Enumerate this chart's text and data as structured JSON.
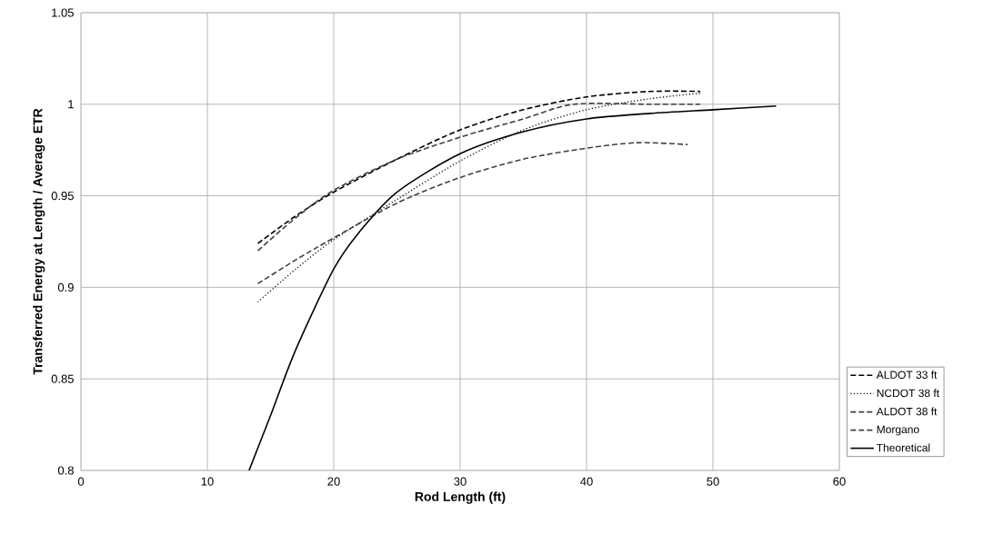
{
  "chart_data": {
    "type": "line",
    "xlabel": "Rod Length (ft)",
    "ylabel": "Transferred Energy at Length / Average ETR",
    "xlim": [
      0,
      60
    ],
    "xticks": [
      0,
      10,
      20,
      30,
      40,
      50,
      60
    ],
    "ylim": [
      0.8,
      1.05
    ],
    "yticks": [
      {
        "value": 0.8,
        "label": "0.8"
      },
      0.85,
      {
        "value": 0.9,
        "label": "0.9"
      },
      0.95,
      {
        "value": 1.0,
        "label": "1"
      },
      1.05
    ],
    "grid": true,
    "legend": "right",
    "marker": "none",
    "series": [
      {
        "name": "ALDOT 33 ft",
        "color": "#000000",
        "line_style": "dashed",
        "x": [
          14,
          17,
          20,
          25,
          30,
          35,
          40,
          45,
          49
        ],
        "values": [
          0.924,
          0.939,
          0.952,
          0.97,
          0.986,
          0.997,
          1.004,
          1.007,
          1.007
        ]
      },
      {
        "name": "NCDOT 38 ft",
        "color": "#000000",
        "line_style": "dotted",
        "x": [
          14,
          17,
          20,
          25,
          30,
          35,
          40,
          45,
          49
        ],
        "values": [
          0.892,
          0.91,
          0.926,
          0.948,
          0.969,
          0.986,
          0.997,
          1.003,
          1.006
        ]
      },
      {
        "name": "ALDOT 38 ft",
        "color": "#404040",
        "line_style": "dashed",
        "x": [
          14,
          17,
          20,
          25,
          30,
          35,
          40,
          44,
          48
        ],
        "values": [
          0.902,
          0.915,
          0.927,
          0.946,
          0.96,
          0.97,
          0.976,
          0.979,
          0.978
        ]
      },
      {
        "name": "Morgano",
        "color": "#404040",
        "line_style": "dashed",
        "x": [
          14,
          17,
          20,
          25,
          30,
          35,
          39,
          45,
          49
        ],
        "values": [
          0.92,
          0.938,
          0.953,
          0.97,
          0.982,
          0.992,
          1.0,
          1.0,
          1.0
        ]
      },
      {
        "name": "Theoretical",
        "color": "#000000",
        "line_style": "solid",
        "x": [
          13.3,
          15,
          17,
          20,
          22,
          25,
          30,
          35,
          40,
          45,
          50,
          55
        ],
        "values": [
          0.8,
          0.83,
          0.866,
          0.91,
          0.93,
          0.952,
          0.973,
          0.985,
          0.992,
          0.995,
          0.997,
          0.999
        ]
      }
    ]
  }
}
